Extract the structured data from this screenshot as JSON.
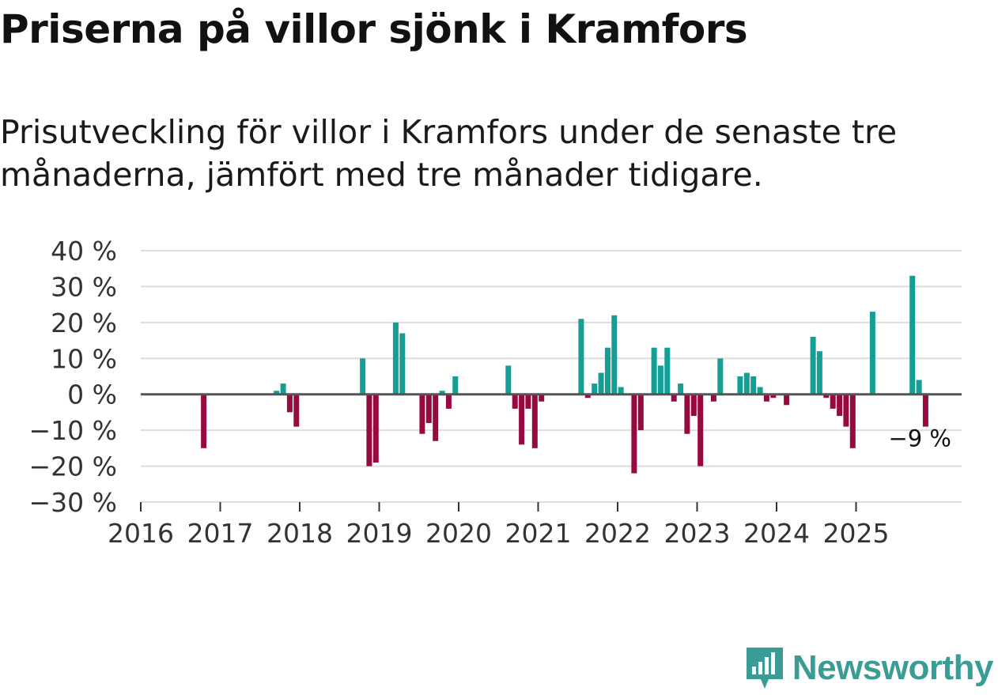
{
  "header": {
    "title": "Priserna på villor sjönk i Kramfors",
    "subtitle": "Prisutveckling för villor i Kramfors under de senaste tre månaderna, jämfört med tre månader tidigare."
  },
  "colors": {
    "positive": "#139e96",
    "negative": "#970a3f",
    "zero_line": "#555555",
    "grid": "#dddddd",
    "brand": "#3a9c95"
  },
  "brand": {
    "name": "Newsworthy",
    "icon": "bar-chart-logo-icon"
  },
  "chart_data": {
    "type": "bar",
    "title": "Priserna på villor sjönk i Kramfors",
    "subtitle": "Prisutveckling för villor i Kramfors under de senaste tre månaderna, jämfört med tre månader tidigare.",
    "xlabel": "",
    "ylabel": "",
    "unit": "%",
    "ylim": [
      -30,
      40
    ],
    "yticks": [
      40,
      30,
      20,
      10,
      0,
      -10,
      -20,
      -30
    ],
    "ytick_labels": [
      "40 %",
      "30 %",
      "20 %",
      "10 %",
      "0 %",
      "−10 %",
      "−20 %",
      "−30 %"
    ],
    "xticks": [
      "2016",
      "2017",
      "2018",
      "2019",
      "2020",
      "2021",
      "2022",
      "2023",
      "2024",
      "2025"
    ],
    "x_start_year": 2016,
    "x_end_year": 2026,
    "grid": true,
    "last_label": "−9 %",
    "bars": [
      {
        "month": "2016-10",
        "value": -15
      },
      {
        "month": "2017-09",
        "value": 1
      },
      {
        "month": "2017-10",
        "value": 3
      },
      {
        "month": "2017-11",
        "value": -5
      },
      {
        "month": "2017-12",
        "value": -9
      },
      {
        "month": "2018-10",
        "value": 10
      },
      {
        "month": "2018-11",
        "value": -20
      },
      {
        "month": "2018-12",
        "value": -19
      },
      {
        "month": "2019-03",
        "value": 20
      },
      {
        "month": "2019-04",
        "value": 17
      },
      {
        "month": "2019-07",
        "value": -11
      },
      {
        "month": "2019-08",
        "value": -8
      },
      {
        "month": "2019-09",
        "value": -13
      },
      {
        "month": "2019-10",
        "value": 1
      },
      {
        "month": "2019-11",
        "value": -4
      },
      {
        "month": "2019-12",
        "value": 5
      },
      {
        "month": "2020-08",
        "value": 8
      },
      {
        "month": "2020-09",
        "value": -4
      },
      {
        "month": "2020-10",
        "value": -14
      },
      {
        "month": "2020-11",
        "value": -4
      },
      {
        "month": "2020-12",
        "value": -15
      },
      {
        "month": "2021-01",
        "value": -2
      },
      {
        "month": "2021-07",
        "value": 21
      },
      {
        "month": "2021-08",
        "value": -1
      },
      {
        "month": "2021-09",
        "value": 3
      },
      {
        "month": "2021-10",
        "value": 6
      },
      {
        "month": "2021-11",
        "value": 13
      },
      {
        "month": "2021-12",
        "value": 22
      },
      {
        "month": "2022-01",
        "value": 2
      },
      {
        "month": "2022-03",
        "value": -22
      },
      {
        "month": "2022-04",
        "value": -10
      },
      {
        "month": "2022-06",
        "value": 13
      },
      {
        "month": "2022-07",
        "value": 8
      },
      {
        "month": "2022-08",
        "value": 13
      },
      {
        "month": "2022-09",
        "value": -2
      },
      {
        "month": "2022-10",
        "value": 3
      },
      {
        "month": "2022-11",
        "value": -11
      },
      {
        "month": "2022-12",
        "value": -6
      },
      {
        "month": "2023-01",
        "value": -20
      },
      {
        "month": "2023-03",
        "value": -2
      },
      {
        "month": "2023-04",
        "value": 10
      },
      {
        "month": "2023-07",
        "value": 5
      },
      {
        "month": "2023-08",
        "value": 6
      },
      {
        "month": "2023-09",
        "value": 5
      },
      {
        "month": "2023-10",
        "value": 2
      },
      {
        "month": "2023-11",
        "value": -2
      },
      {
        "month": "2023-12",
        "value": -1
      },
      {
        "month": "2024-02",
        "value": -3
      },
      {
        "month": "2024-06",
        "value": 16
      },
      {
        "month": "2024-07",
        "value": 12
      },
      {
        "month": "2024-08",
        "value": -1
      },
      {
        "month": "2024-09",
        "value": -4
      },
      {
        "month": "2024-10",
        "value": -6
      },
      {
        "month": "2024-11",
        "value": -9
      },
      {
        "month": "2024-12",
        "value": -15
      },
      {
        "month": "2025-03",
        "value": 23
      },
      {
        "month": "2025-09",
        "value": 33
      },
      {
        "month": "2025-10",
        "value": 4
      },
      {
        "month": "2025-11",
        "value": -9
      }
    ]
  }
}
